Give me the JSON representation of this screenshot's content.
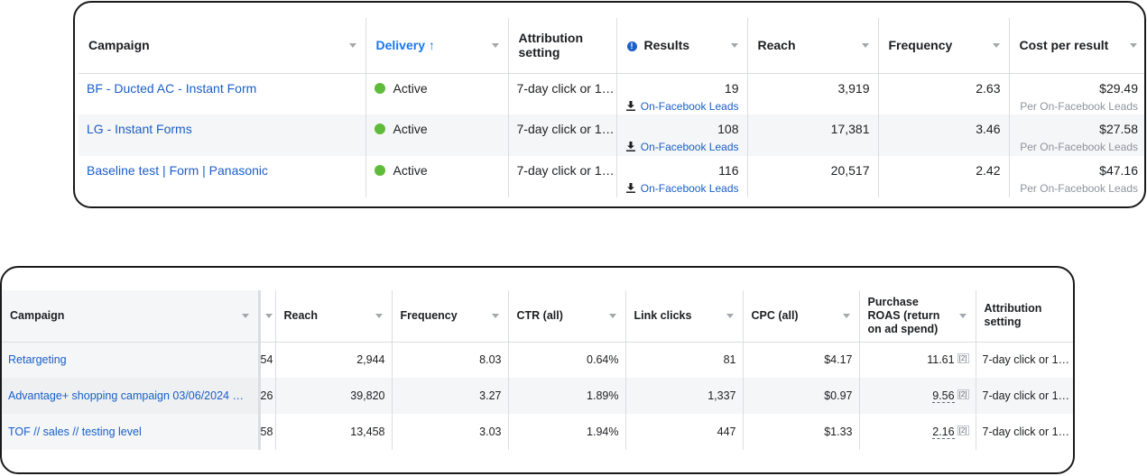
{
  "table1": {
    "headers": {
      "campaign": "Campaign",
      "delivery": "Delivery",
      "attribution": "Attribution setting",
      "results": "Results",
      "reach": "Reach",
      "frequency": "Frequency",
      "cost_per_result": "Cost per result"
    },
    "rows": [
      {
        "campaign": "BF - Ducted AC - Instant Form",
        "delivery": "Active",
        "attribution": "7-day click or 1…",
        "results": "19",
        "results_type": "On-Facebook Leads",
        "reach": "3,919",
        "frequency": "2.63",
        "cost": "$29.49",
        "cost_sub": "Per On-Facebook Leads"
      },
      {
        "campaign": "LG - Instant Forms",
        "delivery": "Active",
        "attribution": "7-day click or 1…",
        "results": "108",
        "results_type": "On-Facebook Leads",
        "reach": "17,381",
        "frequency": "3.46",
        "cost": "$27.58",
        "cost_sub": "Per On-Facebook Leads"
      },
      {
        "campaign": "Baseline test | Form | Panasonic",
        "delivery": "Active",
        "attribution": "7-day click or 1…",
        "results": "116",
        "results_type": "On-Facebook Leads",
        "reach": "20,517",
        "frequency": "2.42",
        "cost": "$47.16",
        "cost_sub": "Per On-Facebook Leads"
      }
    ],
    "status_color": "#5fbc3a",
    "link_color": "#1a5ec9"
  },
  "table2": {
    "headers": {
      "campaign": "Campaign",
      "reach": "Reach",
      "frequency": "Frequency",
      "ctr": "CTR (all)",
      "link_clicks": "Link clicks",
      "cpc": "CPC (all)",
      "roas": "Purchase ROAS (return on ad spend)",
      "attribution": "Attribution setting"
    },
    "rows": [
      {
        "campaign": "Retargeting",
        "cut": "54",
        "reach": "2,944",
        "frequency": "8.03",
        "ctr": "0.64%",
        "link_clicks": "81",
        "cpc": "$4.17",
        "roas": "11.61",
        "roas_note": "[2]",
        "attribution": "7-day click or 1…"
      },
      {
        "campaign": "Advantage+ shopping campaign 03/06/2024 …",
        "cut": "26",
        "reach": "39,820",
        "frequency": "3.27",
        "ctr": "1.89%",
        "link_clicks": "1,337",
        "cpc": "$0.97",
        "roas": "9.56",
        "roas_note": "[2]",
        "attribution": "7-day click or 1…"
      },
      {
        "campaign": "TOF // sales // testing level",
        "cut": "58",
        "reach": "13,458",
        "frequency": "3.03",
        "ctr": "1.94%",
        "link_clicks": "447",
        "cpc": "$1.33",
        "roas": "2.16",
        "roas_note": "[2]",
        "attribution": "7-day click or 1…"
      }
    ]
  }
}
